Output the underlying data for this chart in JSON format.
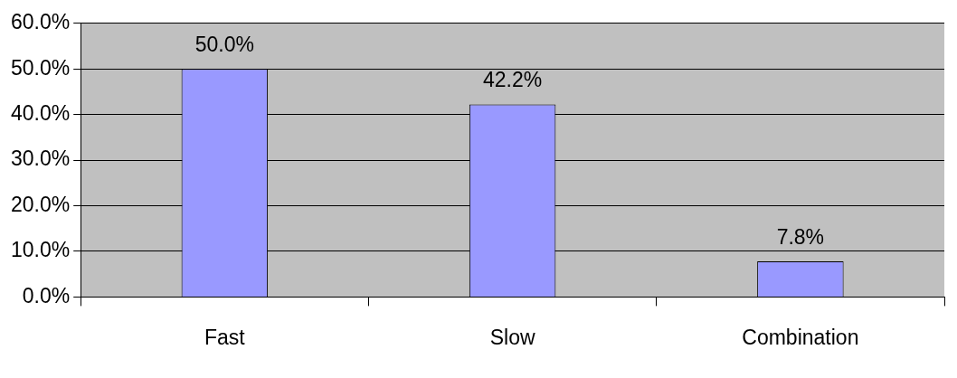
{
  "chart_data": {
    "type": "bar",
    "categories": [
      "Fast",
      "Slow",
      "Combination"
    ],
    "series": [
      {
        "color": "#9999ff",
        "values": [
          50.0,
          42.2,
          7.8
        ]
      }
    ],
    "value_labels": [
      "50.0%",
      "42.2%",
      "7.8%"
    ],
    "ylim": [
      0,
      60
    ],
    "yticks": [
      {
        "value": 0,
        "label": "0.0%"
      },
      {
        "value": 10,
        "label": "10.0%"
      },
      {
        "value": 20,
        "label": "20.0%"
      },
      {
        "value": 30,
        "label": "30.0%"
      },
      {
        "value": 40,
        "label": "40.0%"
      },
      {
        "value": 50,
        "label": "50.0%"
      },
      {
        "value": 60,
        "label": "60.0%"
      }
    ],
    "grid": "y",
    "legend": false
  }
}
